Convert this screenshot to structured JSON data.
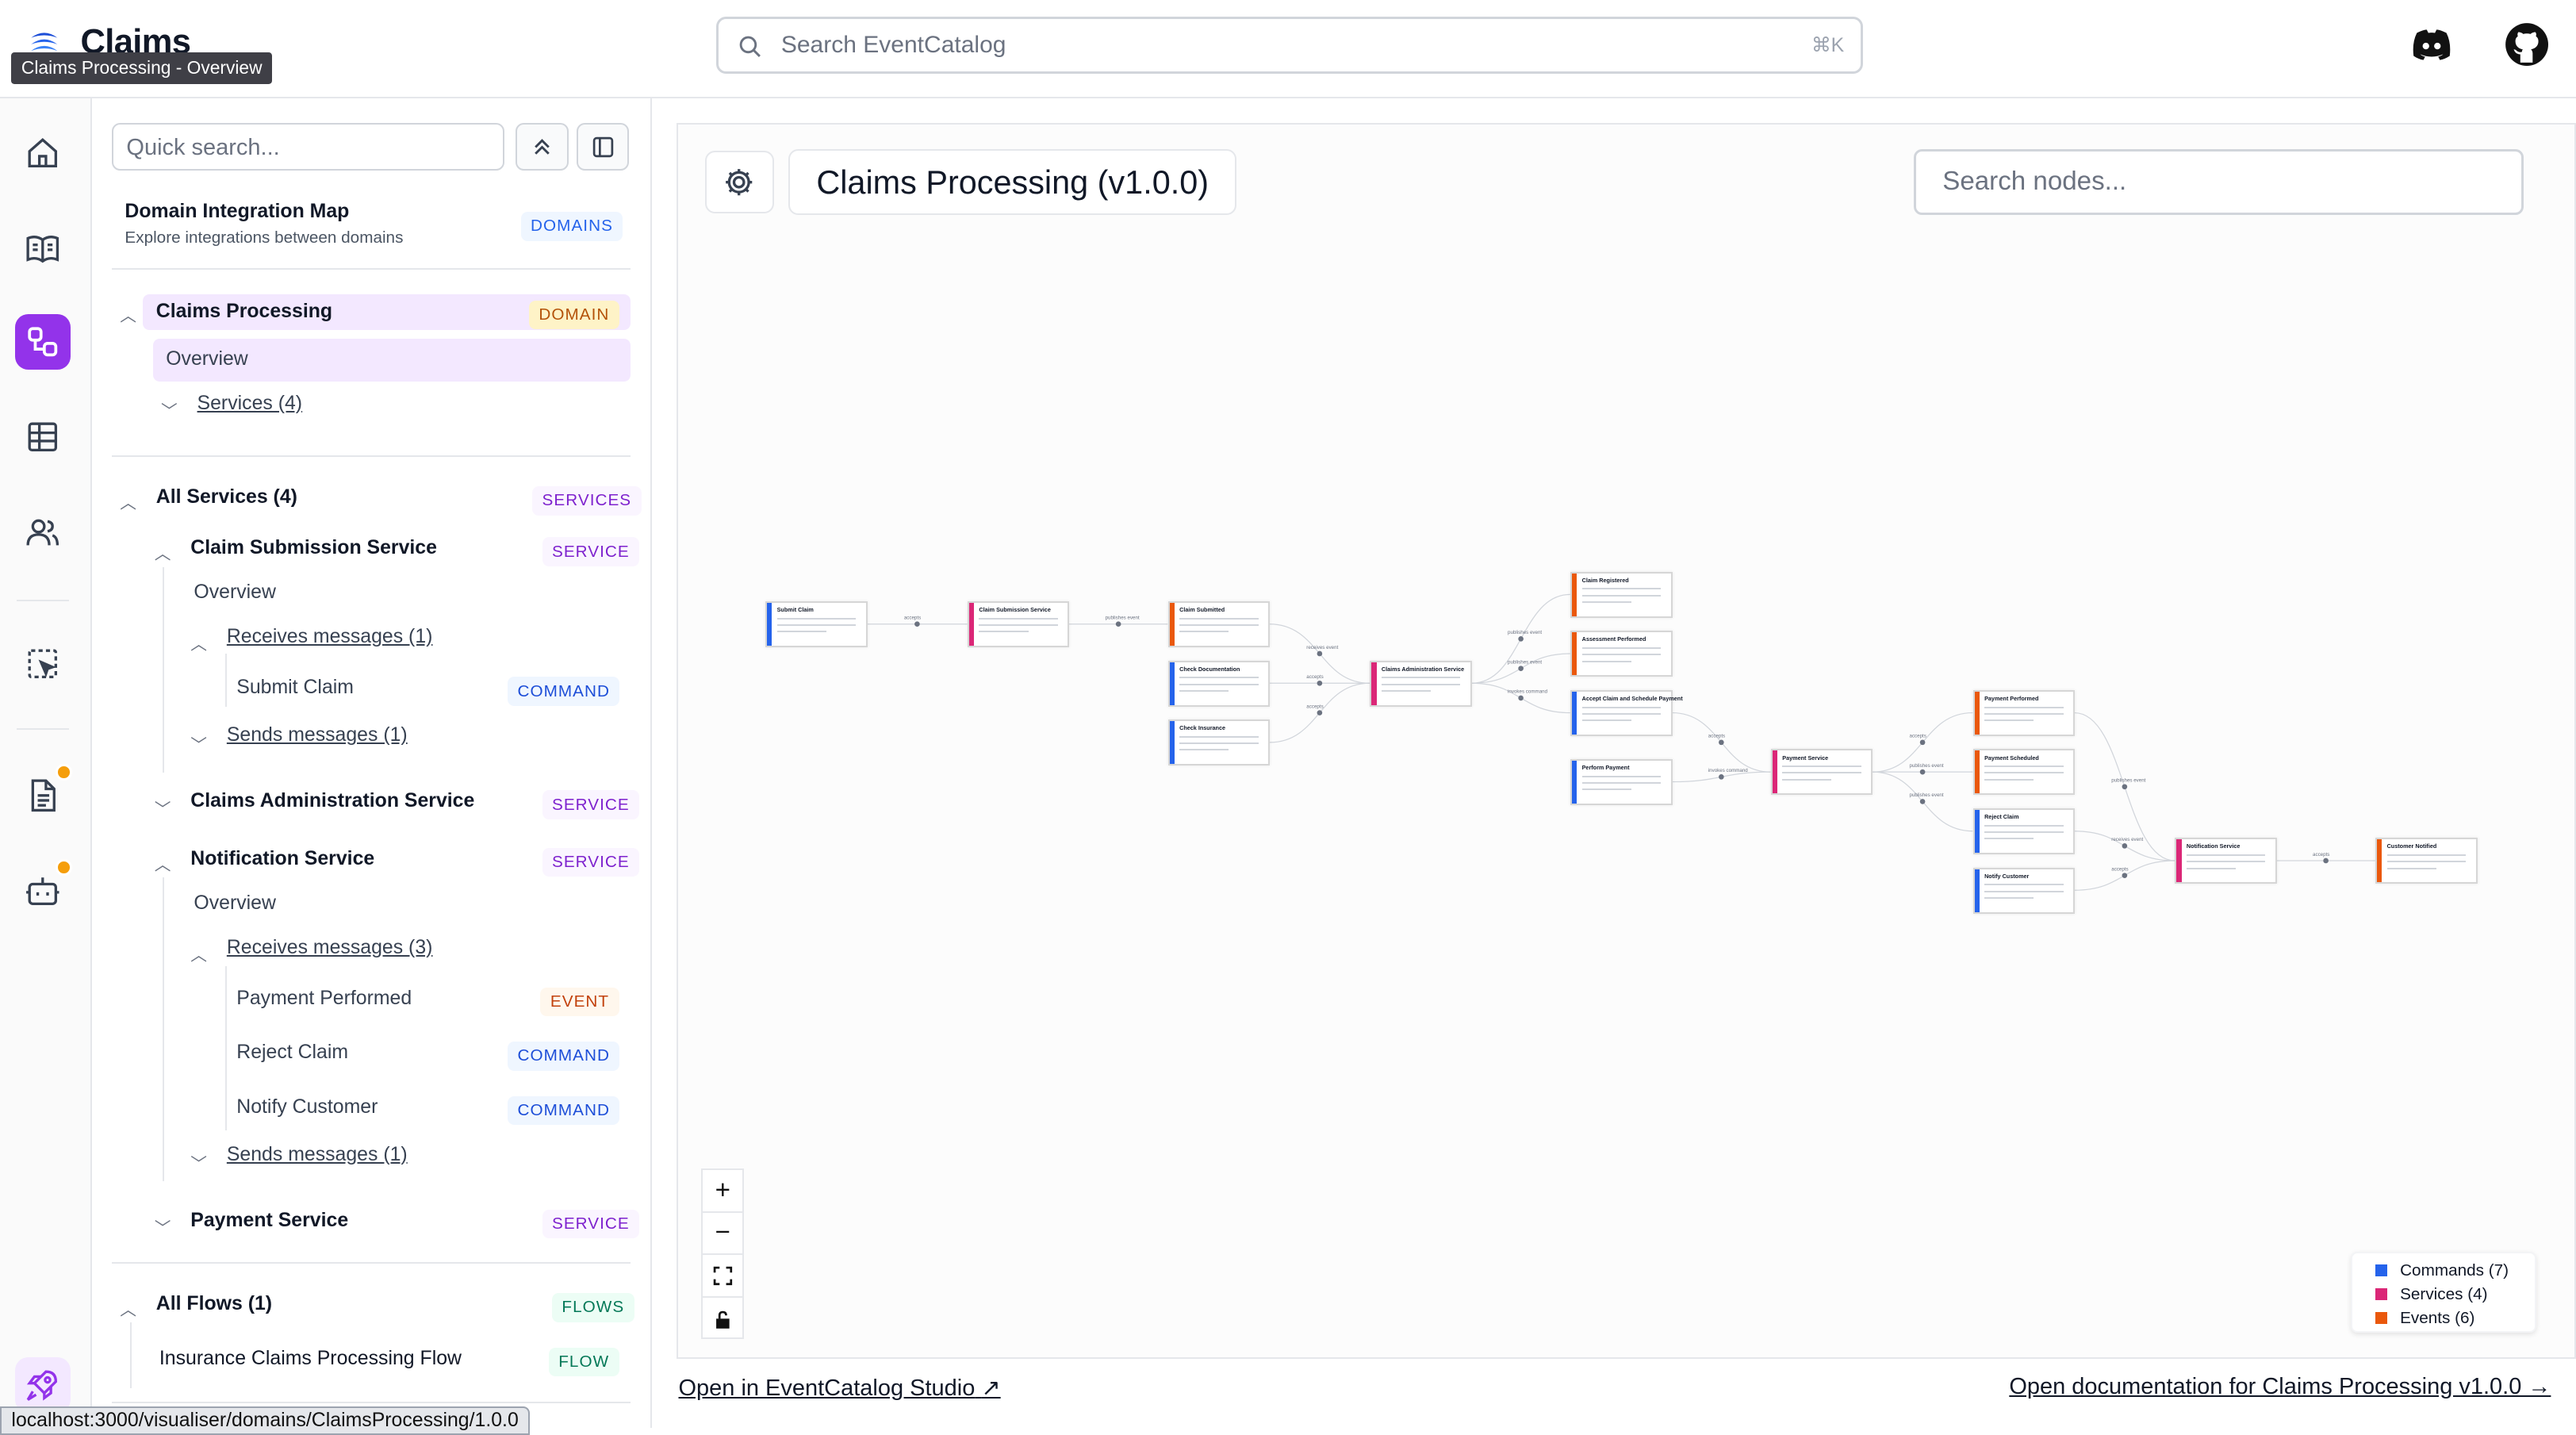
{
  "app": {
    "title": "Claims",
    "tooltip": "Claims Processing - Overview"
  },
  "search": {
    "placeholder": "Search EventCatalog",
    "shortcut": "⌘K"
  },
  "header_icons": [
    "discord-icon",
    "github-icon"
  ],
  "rail": [
    "home-icon",
    "book-icon",
    "visualiser-icon",
    "table-icon",
    "users-icon",
    "selection-icon",
    "document-icon",
    "bot-icon",
    "rocket-icon"
  ],
  "sidebar": {
    "quick_search": "Quick search...",
    "integration": {
      "title": "Domain Integration Map",
      "subtitle": "Explore integrations between domains",
      "badge": "DOMAINS"
    },
    "domain": {
      "title": "Claims Processing",
      "badge": "DOMAIN",
      "overview": "Overview",
      "services": "Services (4)"
    },
    "all_services": {
      "title": "All Services (4)",
      "badge": "SERVICES",
      "claim_submission": {
        "title": "Claim Submission Service",
        "badge": "SERVICE",
        "overview": "Overview",
        "receives": "Receives messages (1)",
        "submit_claim": "Submit Claim",
        "submit_badge": "COMMAND",
        "sends": "Sends messages (1)"
      },
      "claims_admin": {
        "title": "Claims Administration Service",
        "badge": "SERVICE"
      },
      "notification": {
        "title": "Notification Service",
        "badge": "SERVICE",
        "overview": "Overview",
        "receives": "Receives messages (3)",
        "m1": "Payment Performed",
        "m1_badge": "EVENT",
        "m2": "Reject Claim",
        "m2_badge": "COMMAND",
        "m3": "Notify Customer",
        "m3_badge": "COMMAND",
        "sends": "Sends messages (1)"
      },
      "payment": {
        "title": "Payment Service",
        "badge": "SERVICE"
      }
    },
    "flows": {
      "title": "All Flows (1)",
      "badge": "FLOWS",
      "item": "Insurance Claims Processing Flow",
      "item_badge": "FLOW"
    }
  },
  "canvas": {
    "title": "Claims Processing (v1.0.0)",
    "node_search": "Search nodes...",
    "nodes": [
      "Submit Claim",
      "Claim Submission Service",
      "Claim Submitted",
      "Check Documentation",
      "Check Insurance",
      "Claims Administration Service",
      "Claim Registered",
      "Assessment Performed",
      "Accept Claim and Schedule Payment",
      "Perform Payment",
      "Payment Service",
      "Payment Performed",
      "Payment Scheduled",
      "Reject Claim",
      "Notify Customer",
      "Notification Service",
      "Customer Notified"
    ],
    "edge_labels": [
      "accepts",
      "publishes event",
      "receives event",
      "accepts",
      "accepts",
      "publishes event",
      "publishes event",
      "invokes command",
      "accepts",
      "invokes command",
      "accepts",
      "publishes event",
      "publishes event",
      "receives event",
      "accepts",
      "accepts",
      "publishes event"
    ],
    "legend": {
      "commands": "Commands (7)",
      "services": "Services (4)",
      "events": "Events (6)"
    }
  },
  "colors": {
    "command": "#2563eb",
    "service": "#db2777",
    "event": "#ea580c",
    "accent": "#9333ea"
  },
  "links": {
    "studio": "Open in EventCatalog Studio",
    "docs": "Open documentation for Claims Processing v1.0.0 →"
  },
  "status_url": "localhost:3000/visualiser/domains/ClaimsProcessing/1.0.0"
}
